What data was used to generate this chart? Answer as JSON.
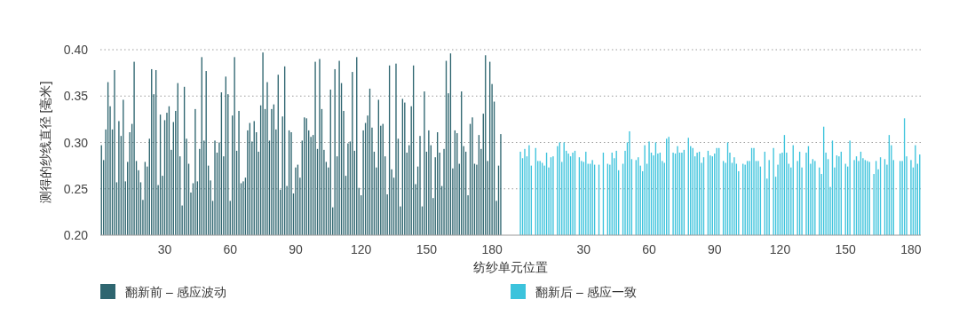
{
  "chart_data": {
    "type": "bar",
    "xlabel": "纺纱单元位置",
    "ylabel": "测得的纱线直径 [毫米]",
    "ylim": [
      0.2,
      0.4
    ],
    "yticks": [
      {
        "value": 0.2,
        "label": "0.20"
      },
      {
        "value": 0.25,
        "label": "0.25"
      },
      {
        "value": 0.3,
        "label": "0.30"
      },
      {
        "value": 0.35,
        "label": "0.35"
      },
      {
        "value": 0.4,
        "label": "0.40"
      }
    ],
    "grid": "y",
    "legend": "bottom",
    "categories": [
      null,
      null,
      null,
      null,
      null,
      null,
      null,
      null,
      null,
      null,
      null,
      null,
      null,
      null,
      null,
      null,
      null,
      null,
      null,
      null,
      null,
      null,
      null,
      null,
      null,
      null,
      null,
      null,
      null,
      "30",
      null,
      null,
      null,
      null,
      null,
      null,
      null,
      null,
      null,
      null,
      null,
      null,
      null,
      null,
      null,
      null,
      null,
      null,
      null,
      null,
      null,
      null,
      null,
      null,
      null,
      null,
      null,
      null,
      null,
      "60",
      null,
      null,
      null,
      null,
      null,
      null,
      null,
      null,
      null,
      null,
      null,
      null,
      null,
      null,
      null,
      null,
      null,
      null,
      null,
      null,
      null,
      null,
      null,
      null,
      null,
      null,
      null,
      null,
      null,
      "90",
      null,
      null,
      null,
      null,
      null,
      null,
      null,
      null,
      null,
      null,
      null,
      null,
      null,
      null,
      null,
      null,
      null,
      null,
      null,
      null,
      null,
      null,
      null,
      null,
      null,
      null,
      null,
      null,
      null,
      "120",
      null,
      null,
      null,
      null,
      null,
      null,
      null,
      null,
      null,
      null,
      null,
      null,
      null,
      null,
      null,
      null,
      null,
      null,
      null,
      null,
      null,
      null,
      null,
      null,
      null,
      null,
      null,
      null,
      null,
      "150",
      null,
      null,
      null,
      null,
      null,
      null,
      null,
      null,
      null,
      null,
      null,
      null,
      null,
      null,
      null,
      null,
      null,
      null,
      null,
      null,
      null,
      null,
      null,
      null,
      null,
      null,
      null,
      null,
      null,
      "180",
      null,
      null,
      null,
      null,
      null,
      null,
      null,
      null,
      null,
      null,
      null,
      null,
      null,
      null,
      null,
      null,
      null,
      null,
      null,
      null,
      null,
      null,
      null,
      null,
      null,
      null,
      null,
      null,
      null,
      null,
      null,
      null,
      null,
      null,
      null,
      null,
      null,
      null,
      null,
      null,
      null,
      "30",
      null,
      null,
      null,
      null,
      null,
      null,
      null,
      null,
      null,
      null,
      null,
      null,
      null,
      null,
      null,
      null,
      null,
      null,
      null,
      null,
      null,
      null,
      null,
      null,
      null,
      null,
      null,
      null,
      null,
      "60",
      null,
      null,
      null,
      null,
      null,
      null,
      null,
      null,
      null,
      null,
      null,
      null,
      null,
      null,
      null,
      null,
      null,
      null,
      null,
      null,
      null,
      null,
      null,
      null,
      null,
      null,
      null,
      null,
      null,
      "90",
      null,
      null,
      null,
      null,
      null,
      null,
      null,
      null,
      null,
      null,
      null,
      null,
      null,
      null,
      null,
      null,
      null,
      null,
      null,
      null,
      null,
      null,
      null,
      null,
      null,
      null,
      null,
      null,
      null,
      "120",
      null,
      null,
      null,
      null,
      null,
      null,
      null,
      null,
      null,
      null,
      null,
      null,
      null,
      null,
      null,
      null,
      null,
      null,
      null,
      null,
      null,
      null,
      null,
      null,
      null,
      null,
      null,
      null,
      null,
      "150",
      null,
      null,
      null,
      null,
      null,
      null,
      null,
      null,
      null,
      null,
      null,
      null,
      null,
      null,
      null,
      null,
      null,
      null,
      null,
      null,
      null,
      null,
      null,
      null,
      null,
      null,
      null,
      null,
      null,
      "180",
      null,
      null,
      null,
      null
    ],
    "series": [
      {
        "name": "翻新前 – 感应波动",
        "color": "#2f6670",
        "values": [
          0.297,
          0.281,
          0.314,
          0.365,
          0.339,
          0.314,
          0.378,
          0.257,
          0.323,
          0.307,
          0.346,
          0.258,
          0.279,
          0.311,
          0.32,
          0.387,
          0.28,
          0.27,
          0.257,
          0.238,
          0.279,
          0.274,
          0.304,
          0.379,
          0.352,
          0.378,
          0.254,
          0.33,
          0.264,
          0.324,
          0.332,
          0.339,
          0.292,
          0.322,
          0.334,
          0.364,
          0.285,
          0.232,
          0.36,
          0.304,
          0.277,
          0.246,
          0.256,
          0.336,
          0.258,
          0.293,
          0.392,
          0.302,
          0.377,
          0.275,
          0.259,
          0.237,
          0.302,
          0.289,
          0.3,
          0.354,
          0.285,
          0.371,
          0.352,
          0.237,
          0.329,
          0.392,
          0.291,
          0.334,
          0.256,
          0.258,
          0.262,
          0.313,
          0.321,
          0.301,
          0.323,
          0.311,
          0.29,
          0.34,
          0.397,
          0.336,
          0.365,
          0.302,
          0.336,
          0.341,
          0.314,
          0.373,
          0.249,
          0.328,
          0.382,
          0.253,
          0.313,
          0.311,
          0.245,
          0.273,
          0.276,
          0.262,
          0.302,
          0.327,
          0.326,
          0.313,
          0.306,
          0.308,
          0.387,
          0.293,
          0.39,
          0.336,
          0.292,
          0.279,
          0.273,
          0.357,
          0.23,
          0.379,
          0.285,
          0.388,
          0.364,
          0.334,
          0.264,
          0.299,
          0.301,
          0.376,
          0.291,
          0.392,
          0.251,
          0.243,
          0.313,
          0.321,
          0.329,
          0.358,
          0.316,
          0.29,
          0.273,
          0.346,
          0.318,
          0.32,
          0.285,
          0.244,
          0.383,
          0.271,
          0.262,
          0.385,
          0.304,
          0.231,
          0.347,
          0.343,
          0.289,
          0.297,
          0.339,
          0.383,
          0.255,
          0.274,
          0.307,
          0.231,
          0.355,
          0.29,
          0.313,
          0.297,
          0.24,
          0.284,
          0.311,
          0.289,
          0.253,
          0.293,
          0.388,
          0.353,
          0.396,
          0.272,
          0.313,
          0.31,
          0.277,
          0.355,
          0.296,
          0.29,
          0.243,
          0.32,
          0.327,
          0.277,
          0.276,
          0.308,
          0.293,
          0.331,
          0.394,
          0.28,
          0.387,
          0.363,
          0.344,
          0.237,
          0.275,
          0.309,
          null,
          null,
          null,
          null,
          null,
          null,
          null,
          null,
          null,
          null,
          null,
          null,
          null,
          null,
          null,
          null,
          null,
          null,
          null,
          null,
          null,
          null,
          null,
          null,
          null,
          null,
          null,
          null,
          null,
          null,
          null,
          null,
          null,
          null,
          null,
          null,
          null,
          null,
          null,
          null,
          null,
          null,
          null,
          null,
          null,
          null,
          null,
          null,
          null,
          null,
          null,
          null,
          null,
          null,
          null,
          null,
          null,
          null,
          null,
          null,
          null,
          null,
          null,
          null,
          null,
          null,
          null,
          null,
          null,
          null,
          null,
          null,
          null,
          null,
          null,
          null,
          null,
          null,
          null,
          null,
          null,
          null,
          null,
          null,
          null,
          null,
          null,
          null,
          null,
          null,
          null,
          null,
          null,
          null,
          null,
          null,
          null,
          null,
          null,
          null,
          null,
          null,
          null,
          null,
          null,
          null,
          null,
          null,
          null,
          null,
          null,
          null,
          null,
          null,
          null,
          null,
          null,
          null,
          null,
          null,
          null,
          null,
          null,
          null,
          null,
          null,
          null,
          null,
          null,
          null,
          null,
          null,
          null,
          null,
          null,
          null,
          null,
          null,
          null,
          null,
          null,
          null,
          null,
          null,
          null,
          null,
          null,
          null,
          null,
          null,
          null,
          null,
          null,
          null,
          null,
          null,
          null,
          null,
          null,
          null,
          null,
          null,
          null,
          null,
          null,
          null,
          null,
          null,
          null,
          null,
          null,
          null,
          null,
          null,
          null,
          null,
          null,
          null,
          null,
          null,
          null,
          null,
          null,
          null,
          null,
          null,
          null,
          null,
          null,
          null,
          null,
          null
        ]
      },
      {
        "name": "翻新后 – 感应一致",
        "color": "#3cc3dc",
        "values": [
          null,
          null,
          null,
          null,
          null,
          null,
          null,
          null,
          null,
          null,
          null,
          null,
          null,
          null,
          null,
          null,
          null,
          null,
          null,
          null,
          null,
          null,
          null,
          null,
          null,
          null,
          null,
          null,
          null,
          null,
          null,
          null,
          null,
          null,
          null,
          null,
          null,
          null,
          null,
          null,
          null,
          null,
          null,
          null,
          null,
          null,
          null,
          null,
          null,
          null,
          null,
          null,
          null,
          null,
          null,
          null,
          null,
          null,
          null,
          null,
          null,
          null,
          null,
          null,
          null,
          null,
          null,
          null,
          null,
          null,
          null,
          null,
          null,
          null,
          null,
          null,
          null,
          null,
          null,
          null,
          null,
          null,
          null,
          null,
          null,
          null,
          null,
          null,
          null,
          null,
          null,
          null,
          null,
          null,
          null,
          null,
          null,
          null,
          null,
          null,
          null,
          null,
          null,
          null,
          null,
          null,
          null,
          null,
          null,
          null,
          null,
          null,
          null,
          null,
          null,
          null,
          null,
          null,
          null,
          null,
          null,
          null,
          null,
          null,
          null,
          null,
          null,
          null,
          null,
          null,
          null,
          null,
          null,
          null,
          null,
          null,
          null,
          null,
          null,
          null,
          null,
          null,
          null,
          null,
          null,
          null,
          null,
          null,
          null,
          null,
          null,
          null,
          null,
          null,
          null,
          null,
          null,
          null,
          null,
          null,
          null,
          null,
          null,
          null,
          null,
          null,
          null,
          null,
          null,
          null,
          null,
          null,
          null,
          null,
          null,
          null,
          null,
          null,
          null,
          null,
          null,
          null,
          null,
          null,
          null,
          null,
          null,
          null,
          null,
          null,
          null,
          null,
          0.29,
          0.283,
          0.293,
          0.285,
          0.297,
          0.275,
          null,
          0.294,
          0.28,
          0.28,
          0.278,
          0.275,
          0.289,
          0.273,
          0.284,
          0.285,
          null,
          0.296,
          0.3,
          0.279,
          0.3,
          0.291,
          0.288,
          0.285,
          0.289,
          0.291,
          null,
          0.284,
          0.28,
          0.279,
          0.29,
          0.277,
          0.277,
          0.281,
          0.276,
          null,
          0.276,
          null,
          0.289,
          null,
          0.277,
          0.276,
          0.289,
          0.283,
          0.291,
          0.27,
          null,
          0.277,
          0.291,
          0.3,
          0.312,
          0.282,
          null,
          0.281,
          0.284,
          0.275,
          0.269,
          0.297,
          0.277,
          0.301,
          0.289,
          0.286,
          0.3,
          0.288,
          0.289,
          0.28,
          0.278,
          0.304,
          0.306,
          null,
          0.289,
          0.288,
          0.296,
          0.289,
          0.289,
          0.292,
          null,
          0.305,
          0.296,
          0.294,
          0.285,
          0.289,
          0.29,
          0.278,
          0.284,
          null,
          0.291,
          0.286,
          0.285,
          0.288,
          0.294,
          0.294,
          null,
          0.28,
          0.278,
          0.3,
          0.289,
          0.278,
          0.284,
          0.277,
          0.269,
          null,
          0.277,
          0.276,
          0.28,
          0.28,
          0.294,
          0.294,
          0.28,
          0.28,
          0.274,
          null,
          0.29,
          0.261,
          0.281,
          null,
          0.294,
          0.263,
          0.276,
          0.288,
          0.289,
          0.308,
          0.289,
          0.277,
          0.273,
          0.297,
          null,
          0.28,
          0.29,
          0.273,
          null,
          0.289,
          0.296,
          0.277,
          0.282,
          0.28,
          null,
          0.273,
          0.266,
          0.317,
          0.289,
          0.282,
          0.252,
          0.302,
          0.273,
          0.286,
          0.285,
          0.29,
          null,
          0.277,
          0.274,
          0.302,
          null,
          0.281,
          0.285,
          0.28,
          0.29,
          0.283,
          0.281,
          0.28,
          0.279,
          null,
          0.266,
          0.28,
          0.271,
          0.284,
          null,
          0.282,
          0.276,
          0.308,
          0.297,
          0.281,
          null,
          null,
          0.28,
          0.28,
          0.326,
          0.285,
          null,
          0.281,
          0.273,
          0.297,
          0.277,
          0.287
        ]
      }
    ]
  }
}
